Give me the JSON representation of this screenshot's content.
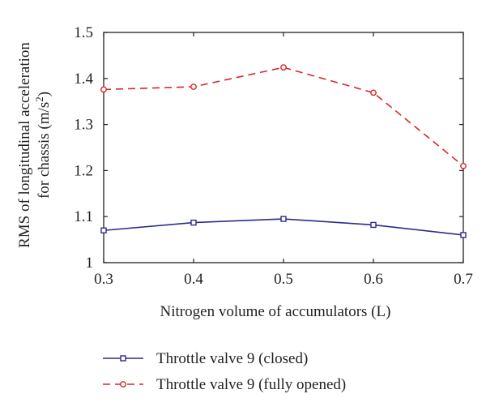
{
  "chart_data": {
    "type": "line",
    "xlabel": "Nitrogen volume of accumulators (L)",
    "ylabel_line1": "RMS of longitudinal acceleration",
    "ylabel_line2_prefix": "for chassis (m/s",
    "ylabel_line2_sup": "2",
    "ylabel_line2_suffix": ")",
    "xlim": [
      0.3,
      0.7
    ],
    "ylim": [
      1.0,
      1.5
    ],
    "x": [
      0.3,
      0.4,
      0.5,
      0.6,
      0.7
    ],
    "xticks": [
      "0.3",
      "0.4",
      "0.5",
      "0.6",
      "0.7"
    ],
    "yticks": [
      "1",
      "1.1",
      "1.2",
      "1.3",
      "1.4",
      "1.5"
    ],
    "grid": false,
    "legend_position": "below-plot",
    "series": [
      {
        "name": "Throttle valve 9 (closed)",
        "values": [
          1.07,
          1.087,
          1.095,
          1.082,
          1.06
        ],
        "color": "#2e2a8a",
        "dash": "solid",
        "marker": "square"
      },
      {
        "name": "Throttle valve 9 (fully opened)",
        "values": [
          1.376,
          1.382,
          1.424,
          1.369,
          1.21
        ],
        "color": "#d7262d",
        "dash": "dashed",
        "marker": "circle"
      }
    ]
  }
}
